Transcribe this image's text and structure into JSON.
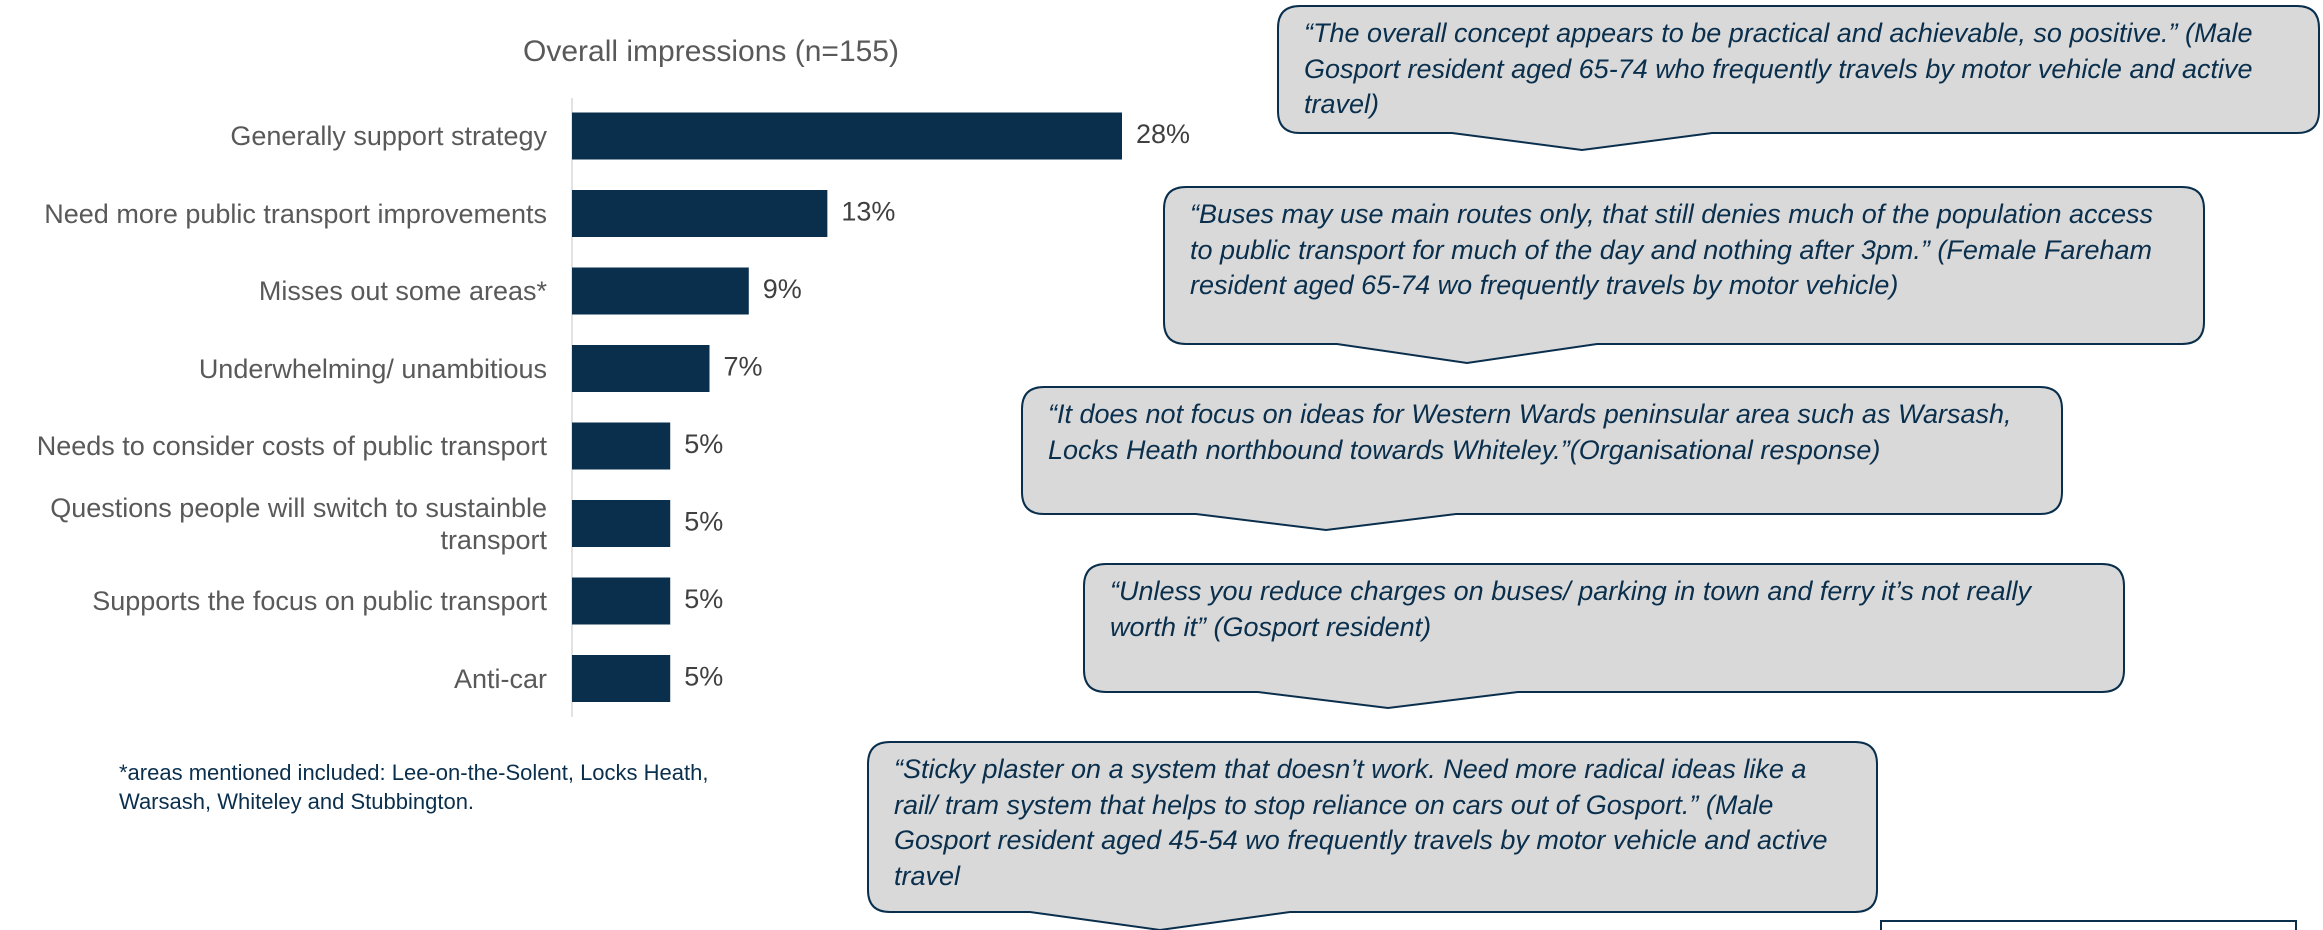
{
  "chart_data": {
    "type": "bar",
    "orientation": "horizontal",
    "title": "Overall impressions (n=155)",
    "categories": [
      "Generally support strategy",
      "Need more public transport improvements",
      "Misses out some areas*",
      "Underwhelming/ unambitious",
      "Needs to consider costs of public transport",
      "Questions people will switch to sustainble transport",
      "Supports the focus on public transport",
      "Anti-car"
    ],
    "values": [
      28,
      13,
      9,
      7,
      5,
      5,
      5,
      5
    ],
    "value_labels": [
      "28%",
      "13%",
      "9%",
      "7%",
      "5%",
      "5%",
      "5%",
      "5%"
    ],
    "color": "#0a2f4d"
  },
  "footnote": "*areas mentioned included: Lee-on-the-Solent, Locks Heath, Warsash, Whiteley and Stubbington.",
  "quotes": [
    "“The overall concept appears to be practical and achievable, so positive.” (Male Gosport resident aged 65-74 who frequently travels by motor vehicle and active travel)",
    "“Buses may use main routes only, that still denies much of the population access to public transport for much of the day and nothing after 3pm.” (Female Fareham resident aged 65-74 wo frequently travels by motor vehicle)",
    "“It does not focus on ideas for Western Wards peninsular area such as Warsash, Locks Heath northbound towards Whiteley.”(Organisational response)",
    "“Unless you reduce charges on buses/ parking in town and ferry it’s not really worth it” (Gosport resident)",
    "“Sticky plaster on a system that doesn’t work. Need more radical ideas like a rail/ tram system that helps to stop reliance on cars out of Gosport.” (Male Gosport resident aged 45-54 wo frequently travels by motor vehicle and active travel"
  ]
}
